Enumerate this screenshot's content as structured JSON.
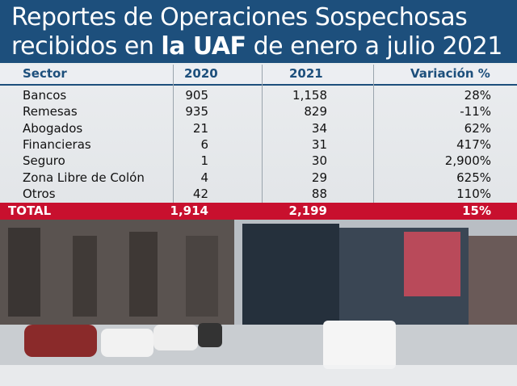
{
  "header": {
    "title_line1": "Reportes de Operaciones Sospechosas",
    "title_line2": [
      "recibidos en",
      "la UAF",
      "de enero a julio 2021"
    ]
  },
  "table": {
    "columns": [
      "Sector",
      "2020",
      "2021",
      "Variación %"
    ],
    "rows": [
      [
        "Bancos",
        "905",
        "1,158",
        "28%"
      ],
      [
        "Remesas",
        "935",
        "829",
        "-11%"
      ],
      [
        "Abogados",
        "21",
        "34",
        "62%"
      ],
      [
        "Financieras",
        "6",
        "31",
        "417%"
      ],
      [
        "Seguro",
        "1",
        "30",
        "2,900%"
      ],
      [
        "Zona Libre de Colón",
        "4",
        "29",
        "625%"
      ],
      [
        "Otros",
        "42",
        "88",
        "110%"
      ]
    ],
    "total": [
      "TOTAL",
      "1,914",
      "2,199",
      "15%"
    ]
  }
}
